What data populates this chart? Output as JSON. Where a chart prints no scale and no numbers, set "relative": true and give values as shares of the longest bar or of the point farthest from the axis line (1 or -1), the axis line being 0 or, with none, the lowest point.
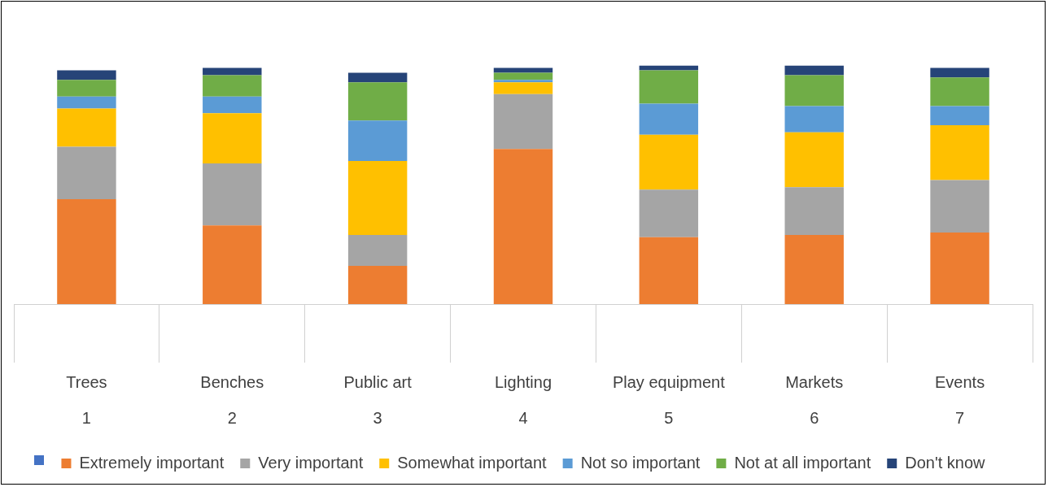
{
  "chart_data": {
    "type": "bar",
    "stacked": true,
    "relative": true,
    "legend": "bottom",
    "categories": [
      "Trees\n1",
      "Benches\n2",
      "Public art\n3",
      "Lighting\n4",
      "Play equipment\n5",
      "Markets\n6",
      "Events\n7"
    ],
    "series": [
      {
        "name": "Extremely important",
        "color": "#ed7d31",
        "values": [
          0.44,
          0.33,
          0.16,
          0.65,
          0.28,
          0.29,
          0.3
        ]
      },
      {
        "name": "Very important",
        "color": "#a5a5a5",
        "values": [
          0.22,
          0.26,
          0.13,
          0.23,
          0.2,
          0.2,
          0.22
        ]
      },
      {
        "name": "Somewhat important",
        "color": "#ffc000",
        "values": [
          0.16,
          0.21,
          0.31,
          0.05,
          0.23,
          0.23,
          0.23
        ]
      },
      {
        "name": "Not so important",
        "color": "#5b9bd5",
        "values": [
          0.05,
          0.07,
          0.17,
          0.01,
          0.13,
          0.11,
          0.08
        ]
      },
      {
        "name": "Not at all important",
        "color": "#70ad47",
        "values": [
          0.07,
          0.09,
          0.16,
          0.03,
          0.14,
          0.13,
          0.12
        ]
      },
      {
        "name": "Don't know",
        "color": "#264478",
        "values": [
          0.04,
          0.03,
          0.04,
          0.02,
          0.02,
          0.04,
          0.04
        ]
      }
    ]
  }
}
